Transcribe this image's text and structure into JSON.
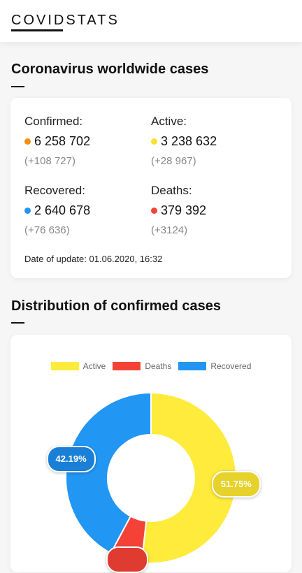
{
  "header": {
    "brand_main": "COVID",
    "brand_rest": "STATS"
  },
  "worldwide": {
    "title": "Coronavirus worldwide cases",
    "confirmed": {
      "label": "Confirmed:",
      "value": "6 258 702",
      "delta": "(+108 727)",
      "color": "#f5900c"
    },
    "active": {
      "label": "Active:",
      "value": "3 238 632",
      "delta": "(+28 967)",
      "color": "#f7e22f"
    },
    "recovered": {
      "label": "Recovered:",
      "value": "2 640 678",
      "delta": "(+76 636)",
      "color": "#2196f3"
    },
    "deaths": {
      "label": "Deaths:",
      "value": "379 392",
      "delta": "(+3124)",
      "color": "#f44336"
    },
    "date_of_update": "Date of update: 01.06.2020, 16:32"
  },
  "distribution": {
    "title": "Distribution of confirmed cases",
    "legend": [
      {
        "label": "Active",
        "color": "#ffeb3b"
      },
      {
        "label": "Deaths",
        "color": "#f44336"
      },
      {
        "label": "Recovered",
        "color": "#2196f3"
      }
    ]
  },
  "chart_data": {
    "type": "pie",
    "categories": [
      "Active",
      "Deaths",
      "Recovered"
    ],
    "values": [
      51.75,
      6.06,
      42.19
    ],
    "value_labels": [
      "51.75%",
      "",
      "42.19%"
    ],
    "colors": [
      "#ffeb3b",
      "#f44336",
      "#2196f3"
    ],
    "label_colors": [
      "#e6d22a",
      "#e03b30",
      "#1a7fd6"
    ],
    "legend_position": "top",
    "donut": true
  }
}
